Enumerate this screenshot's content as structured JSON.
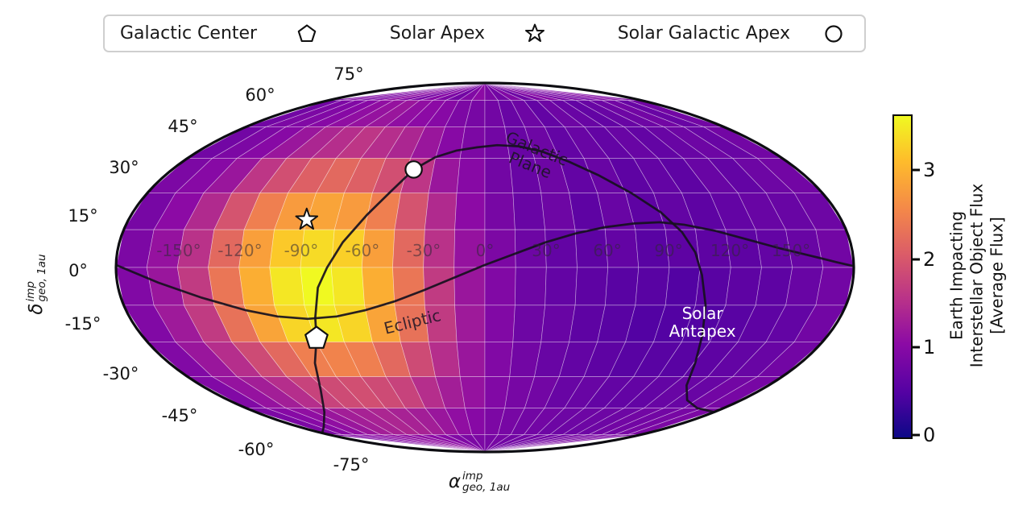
{
  "legend": {
    "items": [
      {
        "label": "Galactic Center",
        "marker": "pentagon"
      },
      {
        "label": "Solar Apex",
        "marker": "star"
      },
      {
        "label": "Solar Galactic Apex",
        "marker": "circle"
      }
    ]
  },
  "axes": {
    "y_label": {
      "symbol": "δ",
      "sup": "imp",
      "sub": "geo, 1au"
    },
    "x_label": {
      "symbol": "α",
      "sup": "imp",
      "sub": "geo, 1au"
    }
  },
  "chart_data": {
    "type": "heatmap",
    "projection": "mollweide",
    "title": "",
    "grid": true,
    "vmin": 0,
    "vmax": 3.6,
    "colormap": {
      "name": "plasma",
      "stops": [
        [
          0,
          "#0d0887"
        ],
        [
          0.14,
          "#5402a3"
        ],
        [
          0.29,
          "#8b0aa5"
        ],
        [
          0.43,
          "#b93289"
        ],
        [
          0.57,
          "#db5c68"
        ],
        [
          0.71,
          "#f48849"
        ],
        [
          0.86,
          "#febc2b"
        ],
        [
          1,
          "#f0f921"
        ]
      ]
    },
    "x_ticks": [
      {
        "lon": -150,
        "label": "-150°"
      },
      {
        "lon": -120,
        "label": "-120°"
      },
      {
        "lon": -90,
        "label": "-90°"
      },
      {
        "lon": -60,
        "label": "-60°"
      },
      {
        "lon": -30,
        "label": "-30°"
      },
      {
        "lon": 0,
        "label": "0°"
      },
      {
        "lon": 30,
        "label": "30°"
      },
      {
        "lon": 60,
        "label": "60°"
      },
      {
        "lon": 90,
        "label": "90°"
      },
      {
        "lon": 120,
        "label": "120°"
      },
      {
        "lon": 150,
        "label": "150°"
      }
    ],
    "y_ticks": [
      {
        "lat": 75,
        "label": "75°"
      },
      {
        "lat": 60,
        "label": "60°"
      },
      {
        "lat": 45,
        "label": "45°"
      },
      {
        "lat": 30,
        "label": "30°"
      },
      {
        "lat": 15,
        "label": "15°"
      },
      {
        "lat": 0,
        "label": "0°"
      },
      {
        "lat": -15,
        "label": "-15°"
      },
      {
        "lat": -30,
        "label": "-30°"
      },
      {
        "lat": -45,
        "label": "-45°"
      },
      {
        "lat": -60,
        "label": "-60°"
      },
      {
        "lat": -75,
        "label": "-75°"
      }
    ],
    "lon_bin_edges": {
      "start": -180,
      "end": 180,
      "step": 15
    },
    "lat_bin_edges": {
      "start": 90,
      "end": -90,
      "step": -15
    },
    "values": [
      [
        0.9,
        1.0,
        0.85,
        0.95,
        1.1,
        0.95,
        0.85,
        1.0,
        0.9,
        0.8,
        0.95,
        1.05,
        0.9,
        0.8,
        0.95,
        0.75,
        0.9,
        1.0,
        0.85,
        0.9,
        0.8,
        0.95,
        1.0,
        0.9
      ],
      [
        0.8,
        0.9,
        0.95,
        1.0,
        1.1,
        1.15,
        1.2,
        1.1,
        1.05,
        1.0,
        0.9,
        0.85,
        0.8,
        0.7,
        0.75,
        0.65,
        0.75,
        0.7,
        0.65,
        0.7,
        0.75,
        0.8,
        0.7,
        0.8
      ],
      [
        0.8,
        0.9,
        1.0,
        1.2,
        1.4,
        1.5,
        1.6,
        1.5,
        1.4,
        1.2,
        1.0,
        0.9,
        0.8,
        0.7,
        0.75,
        0.65,
        0.7,
        0.65,
        0.7,
        0.65,
        0.7,
        0.75,
        0.7,
        0.8
      ],
      [
        0.9,
        1.0,
        1.2,
        1.6,
        1.9,
        2.1,
        2.2,
        2.1,
        1.9,
        1.6,
        1.2,
        1.0,
        0.8,
        0.7,
        0.75,
        0.65,
        0.7,
        0.6,
        0.65,
        0.6,
        0.7,
        0.65,
        0.75,
        0.8
      ],
      [
        0.85,
        1.05,
        1.45,
        1.95,
        2.45,
        2.75,
        2.85,
        2.75,
        2.45,
        1.95,
        1.45,
        1.05,
        0.85,
        0.7,
        0.75,
        0.6,
        0.7,
        0.6,
        0.65,
        0.6,
        0.65,
        0.7,
        0.7,
        0.75
      ],
      [
        0.9,
        1.15,
        1.55,
        2.2,
        2.8,
        3.2,
        3.35,
        3.25,
        2.8,
        2.2,
        1.55,
        1.15,
        0.9,
        0.75,
        0.65,
        0.6,
        0.65,
        0.55,
        0.6,
        0.6,
        0.6,
        0.65,
        0.7,
        0.8
      ],
      [
        0.95,
        1.2,
        1.65,
        2.35,
        2.95,
        3.45,
        3.6,
        3.45,
        2.95,
        2.35,
        1.65,
        1.2,
        0.95,
        0.75,
        0.65,
        0.6,
        0.55,
        0.55,
        0.5,
        0.55,
        0.6,
        0.6,
        0.7,
        0.8
      ],
      [
        0.95,
        1.25,
        1.65,
        2.3,
        2.85,
        3.3,
        3.45,
        3.3,
        2.85,
        2.3,
        1.65,
        1.25,
        0.95,
        0.75,
        0.7,
        0.6,
        0.55,
        0.5,
        0.5,
        0.5,
        0.55,
        0.6,
        0.65,
        0.8
      ],
      [
        0.95,
        1.2,
        1.5,
        1.85,
        2.2,
        2.45,
        2.5,
        2.45,
        2.2,
        1.85,
        1.5,
        1.2,
        0.95,
        0.8,
        0.7,
        0.65,
        0.6,
        0.55,
        0.55,
        0.55,
        0.6,
        0.65,
        0.7,
        0.8
      ],
      [
        0.95,
        1.15,
        1.3,
        1.5,
        1.75,
        1.85,
        1.9,
        1.85,
        1.75,
        1.5,
        1.3,
        1.15,
        0.95,
        0.85,
        0.8,
        0.7,
        0.7,
        0.65,
        0.65,
        0.65,
        0.7,
        0.7,
        0.8,
        0.85
      ],
      [
        0.9,
        1.0,
        1.1,
        1.2,
        1.3,
        1.35,
        1.4,
        1.35,
        1.3,
        1.2,
        1.1,
        1.0,
        0.9,
        0.85,
        0.8,
        0.8,
        0.75,
        0.75,
        0.75,
        0.75,
        0.8,
        0.8,
        0.85,
        0.9
      ],
      [
        0.9,
        0.95,
        1.0,
        1.05,
        1.1,
        1.1,
        1.1,
        1.05,
        1.0,
        0.95,
        0.9,
        0.9,
        0.85,
        0.85,
        0.8,
        0.8,
        0.8,
        0.8,
        0.8,
        0.85,
        0.85,
        0.9,
        0.9,
        0.9
      ]
    ],
    "curves": [
      {
        "name": "Galactic Plane",
        "points": [
          [
            -180,
            -74
          ],
          [
            -155,
            -70
          ],
          [
            -126,
            -62
          ],
          [
            -107,
            -51
          ],
          [
            -97,
            -39
          ],
          [
            -92,
            -33
          ],
          [
            -89,
            -28.5
          ],
          [
            -86,
            -20
          ],
          [
            -82,
            -8
          ],
          [
            -77,
            0
          ],
          [
            -70,
            10
          ],
          [
            -60,
            21
          ],
          [
            -50,
            31
          ],
          [
            -41,
            40
          ],
          [
            -30,
            45.5
          ],
          [
            -18,
            48.5
          ],
          [
            -5,
            50
          ],
          [
            8,
            51
          ],
          [
            22,
            50.5
          ],
          [
            36,
            48
          ],
          [
            50,
            43.5
          ],
          [
            64,
            37.5
          ],
          [
            78,
            30
          ],
          [
            90,
            22
          ],
          [
            98,
            14
          ],
          [
            103,
            6
          ],
          [
            106,
            -3
          ],
          [
            110,
            -15
          ],
          [
            114,
            -27
          ],
          [
            120,
            -39
          ],
          [
            128,
            -49
          ],
          [
            142,
            -56
          ],
          [
            160,
            -60
          ],
          [
            180,
            -62
          ]
        ]
      },
      {
        "name": "Ecliptic",
        "points": [
          [
            -180,
            1
          ],
          [
            -160,
            -6
          ],
          [
            -140,
            -12
          ],
          [
            -120,
            -17
          ],
          [
            -105,
            -19.5
          ],
          [
            -90,
            -20.5
          ],
          [
            -75,
            -19.5
          ],
          [
            -60,
            -17
          ],
          [
            -45,
            -13.5
          ],
          [
            -30,
            -9
          ],
          [
            -15,
            -4
          ],
          [
            0,
            1
          ],
          [
            15,
            5.5
          ],
          [
            30,
            10
          ],
          [
            45,
            13.5
          ],
          [
            60,
            16
          ],
          [
            75,
            17.5
          ],
          [
            88,
            18
          ],
          [
            100,
            17
          ],
          [
            115,
            14.5
          ],
          [
            130,
            11
          ],
          [
            145,
            7.5
          ],
          [
            160,
            4.5
          ],
          [
            172,
            2
          ],
          [
            180,
            0.5
          ]
        ]
      }
    ],
    "annotations": [
      {
        "text_lines": [
          "Galactic",
          "Plane"
        ],
        "lon": 30,
        "lat": 46,
        "rotation": 22,
        "color": "#1c1426",
        "opacity": 0.9
      },
      {
        "text_lines": [
          "Ecliptic"
        ],
        "lon": -37,
        "lat": -22,
        "rotation": -14,
        "color": "#1c1426",
        "opacity": 0.85
      },
      {
        "text_lines": [
          "Solar",
          "Antapex"
        ],
        "lon": 111,
        "lat": -21.5,
        "rotation": 0,
        "color": "#ffffff",
        "opacity": 1
      }
    ],
    "markers": [
      {
        "name": "Galactic Center",
        "shape": "pentagon",
        "lon": -89,
        "lat": -28.5
      },
      {
        "name": "Solar Apex",
        "shape": "star",
        "lon": -90,
        "lat": 19
      },
      {
        "name": "Solar Galactic Apex",
        "shape": "circle",
        "lon": -41,
        "lat": 40
      }
    ],
    "colorbar": {
      "ticks": [
        "0",
        "1",
        "2",
        "3"
      ],
      "label_lines": [
        "Earth Impacting",
        "Interstellar Object Flux",
        "[Average Flux]"
      ]
    }
  }
}
